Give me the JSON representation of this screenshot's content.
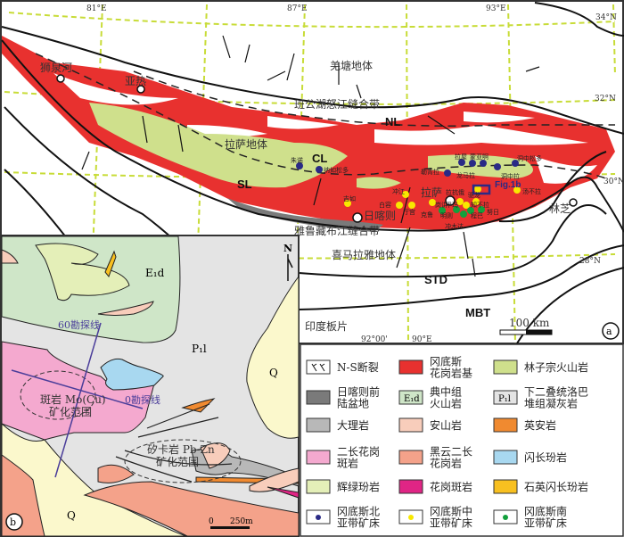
{
  "colors": {
    "granite": "#e8312f",
    "linzizong": "#cfe08c",
    "xigaze": "#7a7a7a",
    "dianzhong": "#cfe6c8",
    "luobadui": "#e4e4e4",
    "marble": "#b8b8b8",
    "andesite": "#f8cdbb",
    "dacite": "#f08a30",
    "two_mica_porphyry": "#f4a9cf",
    "biotite_granite": "#f4a28a",
    "diorite_porphyrite": "#a8d8f0",
    "diabase": "#e4efb8",
    "granite_porphyry": "#e02585",
    "qtz_diorite": "#f8c020",
    "north_ore": "#2a2a86",
    "middle_ore": "#f8e800",
    "south_ore": "#12a03c",
    "quaternary": "#fbf8cc",
    "grid": "#c8dc38"
  },
  "panel_a": {
    "label": "a",
    "longitudes": [
      "81°E",
      "87°E",
      "93°E"
    ],
    "latitudes": [
      "34°N",
      "32°N",
      "30°N",
      "28°N"
    ],
    "bottom_ticks": [
      "92°00'",
      "90°E"
    ],
    "terranes": [
      "羌塘地体",
      "班公湖怒江缝合带",
      "拉萨地体",
      "雅鲁藏布江缝合带",
      "喜马拉雅地体",
      "印度板片"
    ],
    "faults": [
      "NL",
      "CL",
      "SL",
      "STD",
      "MBT"
    ],
    "cities": [
      "狮泉河",
      "亚热",
      "日喀则",
      "拉萨",
      "林芝"
    ],
    "fig_ref": "Fig.1b",
    "scale": "100 km",
    "deposits_north": [
      "朱诺",
      "纳如松多",
      "勒青拉",
      "拉屋",
      "蒙亚啊",
      "龙马拉",
      "洞中拉",
      "洞中松多"
    ],
    "deposits_middle": [
      "吉如",
      "冲江",
      "白容",
      "厅宫",
      "岗讲",
      "拉抗俄",
      "驱龙",
      "甲玛",
      "知不拉",
      "汤不拉"
    ],
    "deposits_south": [
      "克鲁",
      "冲木达",
      "明则",
      "程巴",
      "努日"
    ]
  },
  "panel_b": {
    "label": "b",
    "units": [
      "E₁d",
      "P₁l",
      "Q",
      "Q"
    ],
    "lines": [
      "60勘探线",
      "0勘探线"
    ],
    "zone_mo": [
      "斑岩 Mo(Cu)",
      "矿化范围"
    ],
    "zone_pbzn": [
      "矽卡岩 Pb-Zn",
      "矿化范围"
    ],
    "north": "N",
    "scale": [
      "0",
      "250m"
    ]
  },
  "legend": [
    {
      "lines": [
        "N-S断裂"
      ],
      "icon": "fault"
    },
    {
      "lines": [
        "冈底斯",
        "花岗岩基"
      ],
      "color": "#e8312f"
    },
    {
      "lines": [
        "林子宗火山岩"
      ],
      "color": "#cfe08c"
    },
    {
      "lines": [
        "日喀则前",
        "陆盆地"
      ],
      "color": "#7a7a7a"
    },
    {
      "lines": [
        "典中组",
        "火山岩"
      ],
      "color": "#cfe6c8",
      "code": "E₁d"
    },
    {
      "lines": [
        "下二叠统洛巴",
        "堆组凝灰岩"
      ],
      "color": "#e4e4e4",
      "code": "P₁l"
    },
    {
      "lines": [
        "大理岩"
      ],
      "color": "#b8b8b8"
    },
    {
      "lines": [
        "安山岩"
      ],
      "color": "#f8cdbb"
    },
    {
      "lines": [
        "英安岩"
      ],
      "color": "#f08a30"
    },
    {
      "lines": [
        "二长花岗",
        "斑岩"
      ],
      "color": "#f4a9cf"
    },
    {
      "lines": [
        "黑云二长",
        "花岗岩"
      ],
      "color": "#f4a28a"
    },
    {
      "lines": [
        "闪长玢岩"
      ],
      "color": "#a8d8f0"
    },
    {
      "lines": [
        "辉绿玢岩"
      ],
      "color": "#e4efb8"
    },
    {
      "lines": [
        "花岗斑岩"
      ],
      "color": "#e02585"
    },
    {
      "lines": [
        "石英闪长玢岩"
      ],
      "color": "#f8c020"
    },
    {
      "lines": [
        "冈底斯北",
        "亚带矿床"
      ],
      "dot": "#2a2a86"
    },
    {
      "lines": [
        "冈底斯中",
        "亚带矿床"
      ],
      "dot": "#f8e800"
    },
    {
      "lines": [
        "冈底斯南",
        "亚带矿床"
      ],
      "dot": "#12a03c"
    }
  ]
}
